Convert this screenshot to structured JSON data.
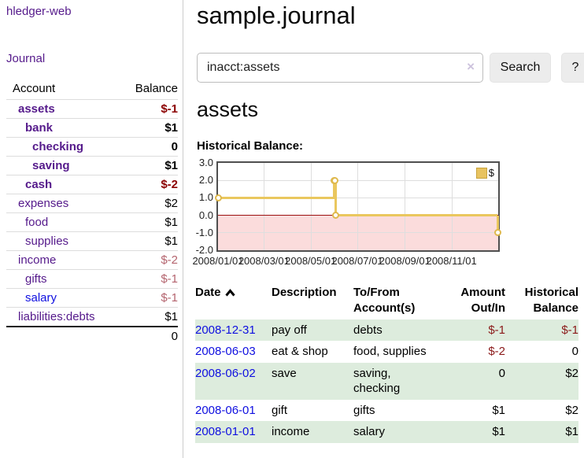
{
  "colors": {
    "link_purple": "#551a8b",
    "link_blue": "#0f0fe0",
    "negative_strong": "#8b0000",
    "negative_muted": "#b4646e",
    "negative_table": "#8b1a1a",
    "row_stripe_green": "#ddecdd",
    "chart_line_gold": "#eac75e",
    "chart_negative_region": "#fbdcdc",
    "chart_zero_line": "#9c1010"
  },
  "sidebar": {
    "brand": "hledger-web",
    "nav": {
      "journal": "Journal"
    },
    "accounts_table": {
      "headers": {
        "account": "Account",
        "balance": "Balance"
      },
      "rows": [
        {
          "name": "assets",
          "depth": 1,
          "bold": true,
          "balance": "$-1",
          "balance_style": "neg-strong"
        },
        {
          "name": "bank",
          "depth": 2,
          "bold": true,
          "balance": "$1",
          "balance_style": "plain"
        },
        {
          "name": "checking",
          "depth": 3,
          "bold": true,
          "balance": "0",
          "balance_style": "plain"
        },
        {
          "name": "saving",
          "depth": 3,
          "bold": true,
          "balance": "$1",
          "balance_style": "plain"
        },
        {
          "name": "cash",
          "depth": 2,
          "bold": true,
          "balance": "$-2",
          "balance_style": "neg-strong"
        },
        {
          "name": "expenses",
          "depth": 1,
          "bold": false,
          "balance": "$2",
          "balance_style": "plain"
        },
        {
          "name": "food",
          "depth": 2,
          "bold": false,
          "balance": "$1",
          "balance_style": "plain"
        },
        {
          "name": "supplies",
          "depth": 2,
          "bold": false,
          "balance": "$1",
          "balance_style": "plain"
        },
        {
          "name": "income",
          "depth": 1,
          "bold": false,
          "balance": "$-2",
          "balance_style": "neg-muted"
        },
        {
          "name": "gifts",
          "depth": 2,
          "bold": false,
          "balance": "$-1",
          "balance_style": "neg-muted"
        },
        {
          "name": "salary",
          "depth": 2,
          "bold": false,
          "link_color": "blue",
          "balance": "$-1",
          "balance_style": "neg-muted"
        },
        {
          "name": "liabilities:debts",
          "depth": 1,
          "bold": false,
          "balance": "$1",
          "balance_style": "plain"
        }
      ],
      "total": "0"
    }
  },
  "main": {
    "title": "sample.journal",
    "search": {
      "value": "inacct:assets",
      "clear": "×",
      "button": "Search",
      "help": "?"
    },
    "heading": "assets",
    "section_label": "Historical Balance:"
  },
  "chart_data": {
    "type": "line",
    "step": true,
    "title": "Historical Balance:",
    "series": [
      {
        "name": "$",
        "points": [
          [
            "2008-01-01",
            1
          ],
          [
            "2008-06-01",
            2
          ],
          [
            "2008-06-02",
            2
          ],
          [
            "2008-06-03",
            0
          ],
          [
            "2008-12-31",
            -1
          ]
        ]
      }
    ],
    "x_tick_labels": [
      "2008/01/01",
      "2008/03/01",
      "2008/05/01",
      "2008/07/01",
      "2008/09/01",
      "2008/11/01"
    ],
    "y_tick_labels": [
      "3.0",
      "2.0",
      "1.0",
      "0.0",
      "-1.0",
      "-2.0"
    ],
    "y_ticks": [
      3,
      2,
      1,
      0,
      -1,
      -2
    ],
    "ylim": [
      -2,
      3
    ],
    "x_domain": [
      "2008-01-01",
      "2009-01-01"
    ],
    "grid": true,
    "legend": {
      "label": "$",
      "position": "top-right"
    },
    "negative_region_shaded": true
  },
  "register": {
    "headers": {
      "date": "Date",
      "description": "Description",
      "accounts": "To/From Account(s)",
      "amount": "Amount Out/In",
      "balance": "Historical Balance"
    },
    "rows": [
      {
        "date": "2008-12-31",
        "description": "pay off",
        "accounts": "debts",
        "amount": "$-1",
        "balance": "$-1"
      },
      {
        "date": "2008-06-03",
        "description": "eat & shop",
        "accounts": "food, supplies",
        "amount": "$-2",
        "balance": "0"
      },
      {
        "date": "2008-06-02",
        "description": "save",
        "accounts": "saving, checking",
        "amount": "0",
        "balance": "$2"
      },
      {
        "date": "2008-06-01",
        "description": "gift",
        "accounts": "gifts",
        "amount": "$1",
        "balance": "$2"
      },
      {
        "date": "2008-01-01",
        "description": "income",
        "accounts": "salary",
        "amount": "$1",
        "balance": "$1"
      }
    ]
  }
}
